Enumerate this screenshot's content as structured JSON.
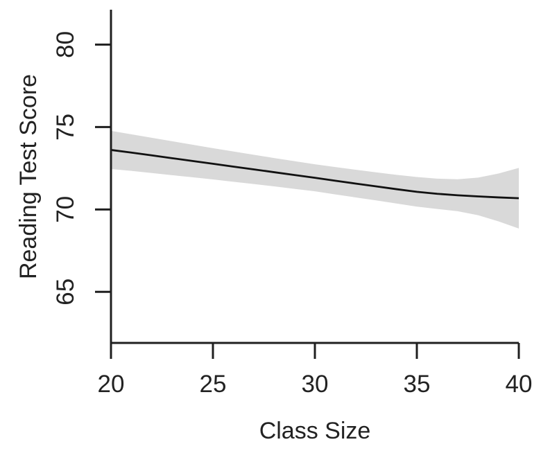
{
  "chart_data": {
    "type": "line",
    "title": "",
    "xlabel": "Class Size",
    "ylabel": "Reading Test Score",
    "xlim": [
      20,
      40
    ],
    "ylim": [
      61.9,
      82.12
    ],
    "x_ticks": [
      20,
      25,
      30,
      35,
      40
    ],
    "y_ticks": [
      65,
      70,
      75,
      80
    ],
    "grid": false,
    "legend": "none",
    "x": [
      20,
      21,
      22,
      23,
      24,
      25,
      26,
      27,
      28,
      29,
      30,
      31,
      32,
      33,
      34,
      35,
      36,
      37,
      38,
      39,
      40
    ],
    "series": [
      {
        "name": "fitted-smooth",
        "style": "solid-line",
        "y": [
          73.61,
          73.45,
          73.28,
          73.11,
          72.94,
          72.77,
          72.6,
          72.43,
          72.26,
          72.09,
          71.92,
          71.74,
          71.57,
          71.4,
          71.23,
          71.07,
          70.95,
          70.86,
          70.79,
          70.73,
          70.68
        ]
      },
      {
        "name": "confidence-upper",
        "style": "band-edge",
        "y": [
          74.77,
          74.56,
          74.35,
          74.14,
          73.93,
          73.72,
          73.52,
          73.32,
          73.12,
          72.93,
          72.74,
          72.57,
          72.41,
          72.25,
          72.1,
          71.97,
          71.87,
          71.83,
          71.93,
          72.18,
          72.52
        ]
      },
      {
        "name": "confidence-lower",
        "style": "band-edge",
        "y": [
          72.45,
          72.34,
          72.21,
          72.08,
          71.95,
          71.82,
          71.68,
          71.54,
          71.4,
          71.25,
          71.1,
          70.91,
          70.73,
          70.55,
          70.36,
          70.17,
          70.03,
          69.89,
          69.65,
          69.28,
          68.84
        ]
      }
    ],
    "colors": {
      "line": "#111111",
      "band": "#d9d9d9",
      "axis": "#1f1f1f",
      "text": "#222222",
      "background": "#ffffff"
    }
  }
}
